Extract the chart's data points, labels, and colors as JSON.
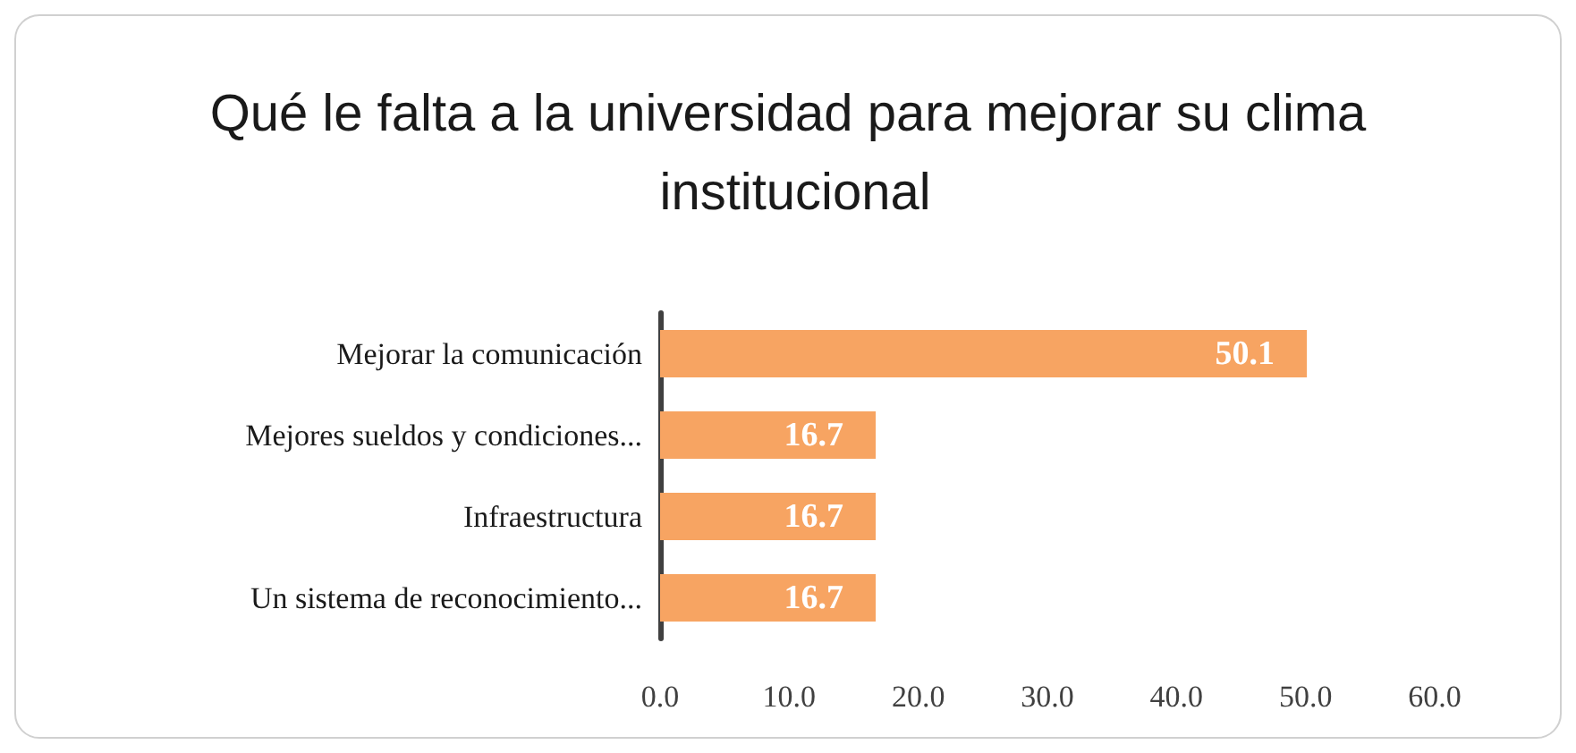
{
  "chart_data": {
    "type": "bar",
    "orientation": "horizontal",
    "title": "Qué le falta a la universidad para mejorar su clima institucional",
    "categories": [
      "Mejorar la comunicación",
      "Mejores sueldos y condiciones...",
      "Infraestructura",
      "Un sistema de reconocimiento..."
    ],
    "values": [
      50.1,
      16.7,
      16.7,
      16.7
    ],
    "color": "#f7a462",
    "xlim": [
      0,
      60
    ],
    "xticks": [
      {
        "value": 0,
        "label": "0.0"
      },
      {
        "value": 10,
        "label": "10.0"
      },
      {
        "value": 20,
        "label": "20.0"
      },
      {
        "value": 30,
        "label": "30.0"
      },
      {
        "value": 40,
        "label": "40.0"
      },
      {
        "value": 50,
        "label": "50.0"
      },
      {
        "value": 60,
        "label": "60.0"
      }
    ],
    "grid": false,
    "data_labels": true
  }
}
